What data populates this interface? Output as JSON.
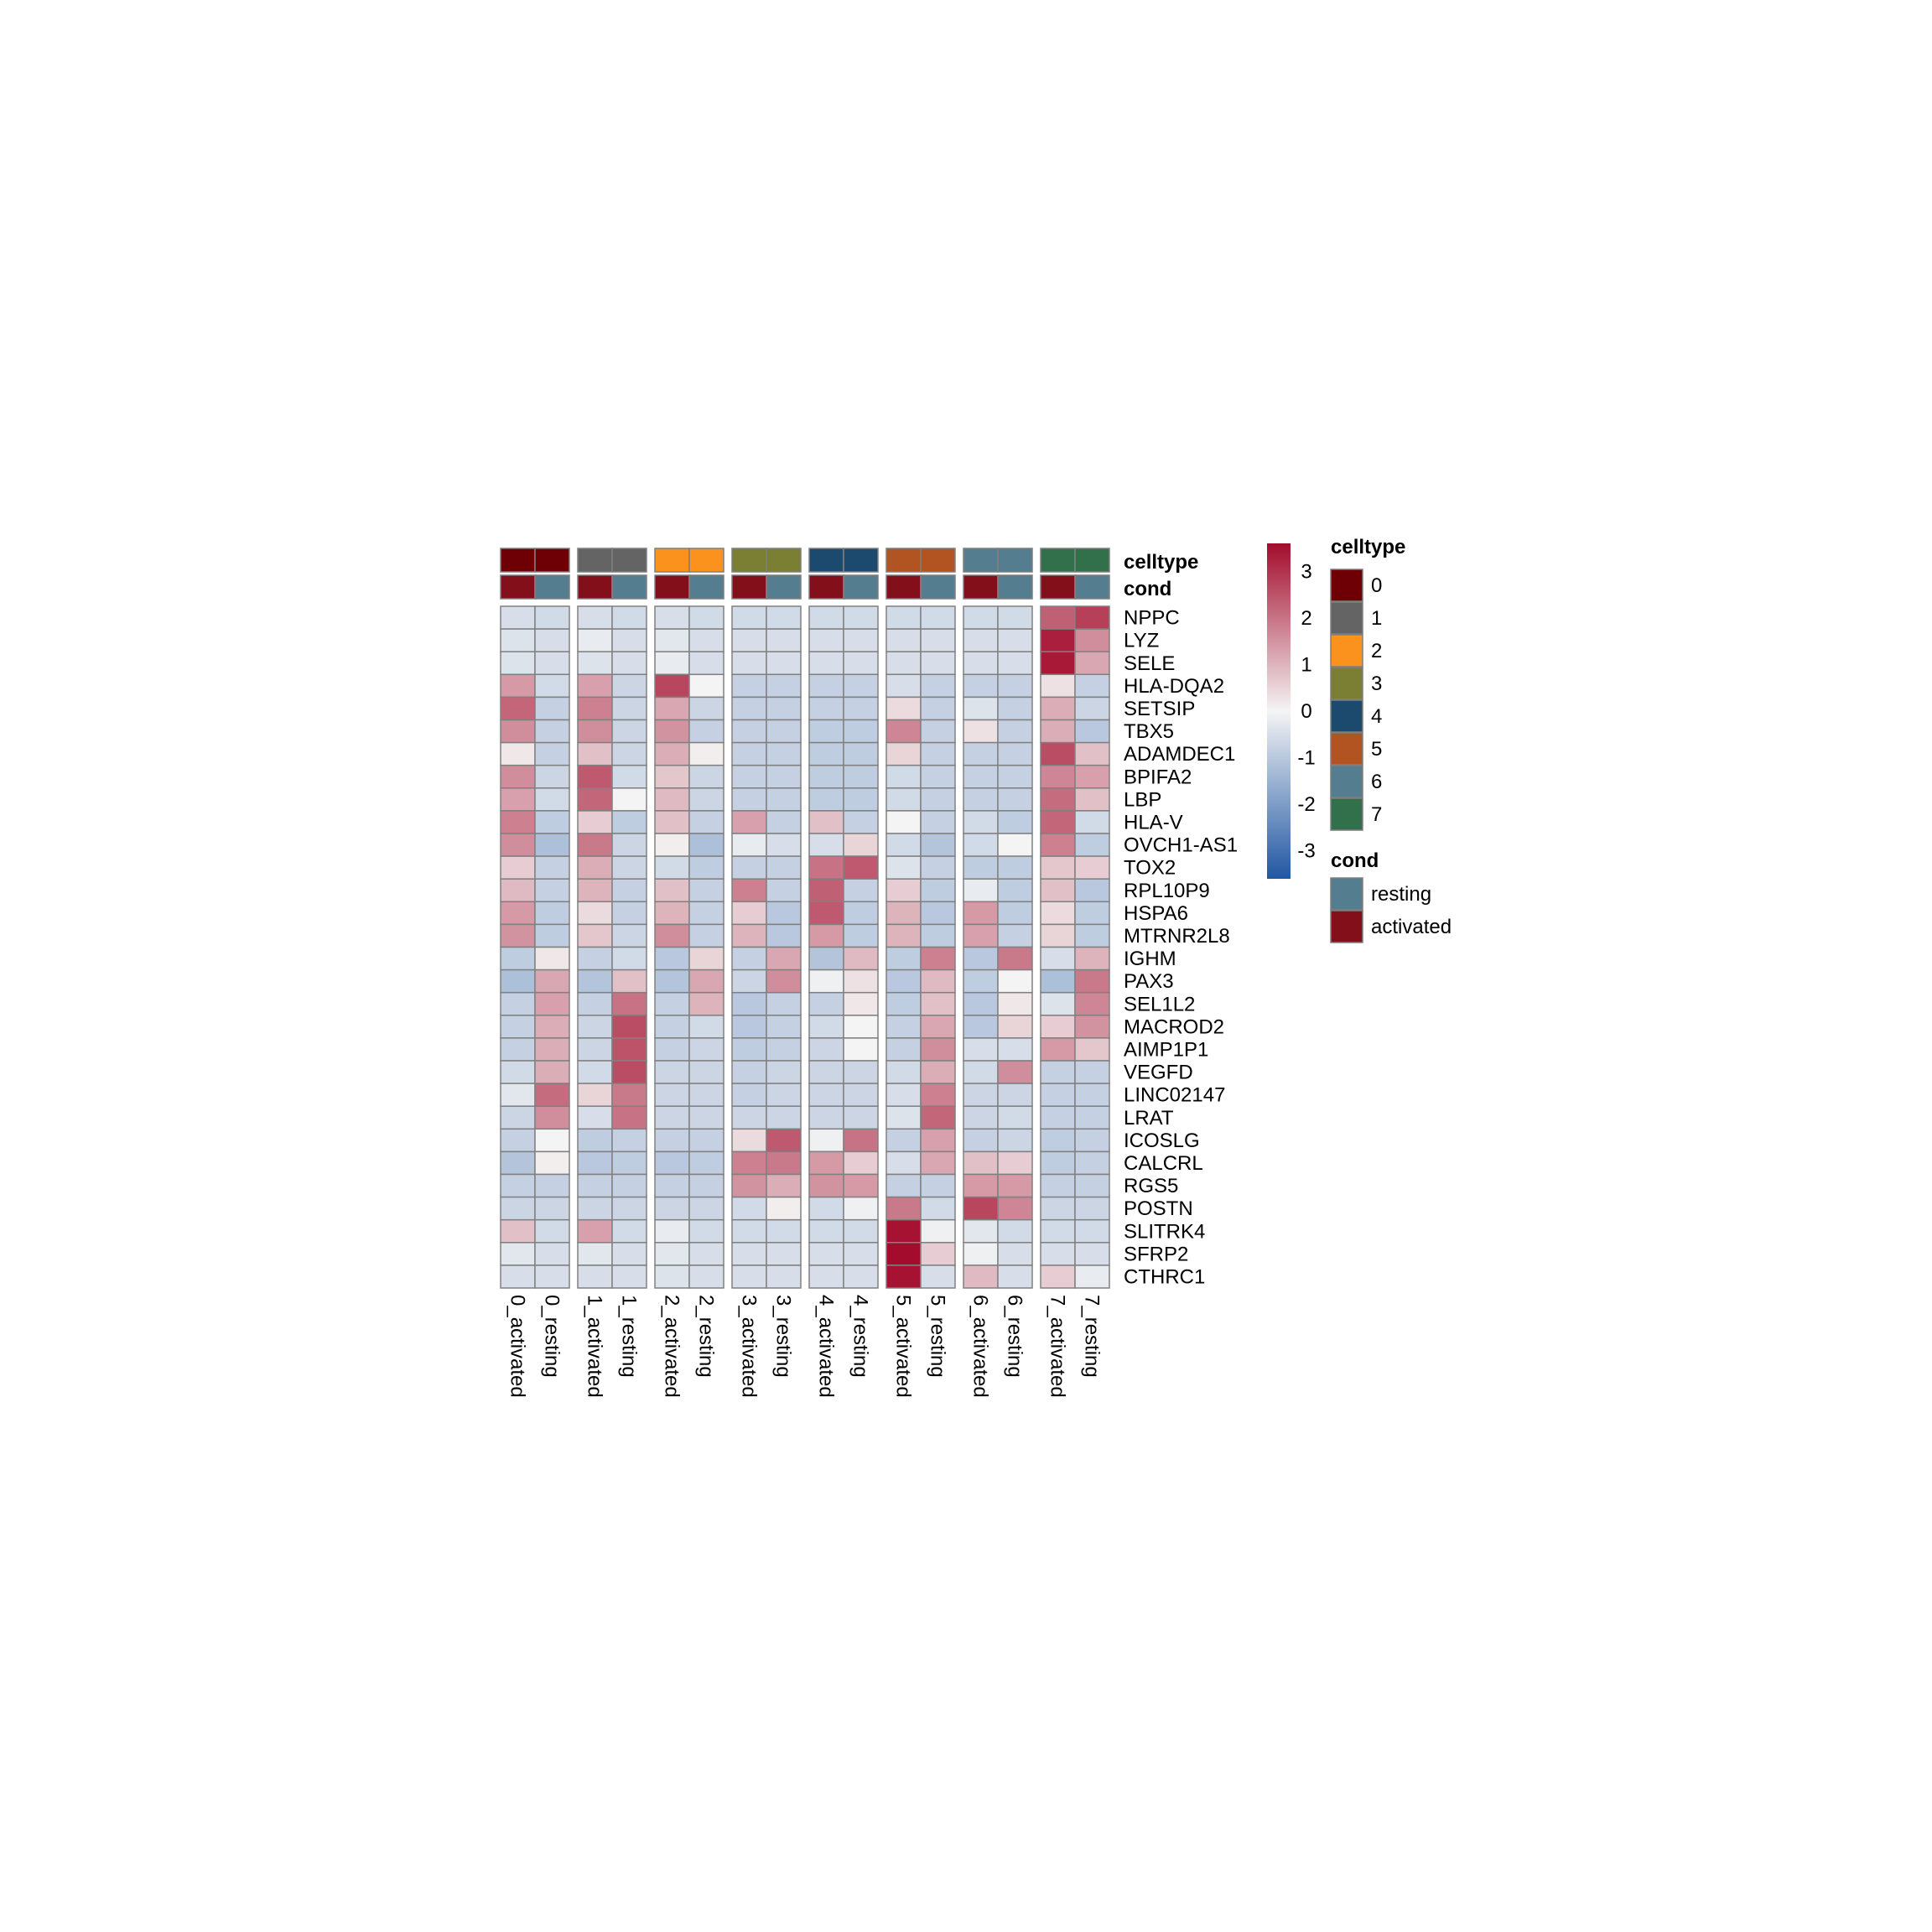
{
  "chart_data": {
    "type": "heatmap",
    "rows": [
      "NPPC",
      "LYZ",
      "SELE",
      "HLA-DQA2",
      "SETSIP",
      "TBX5",
      "ADAMDEC1",
      "BPIFA2",
      "LBP",
      "HLA-V",
      "OVCH1-AS1",
      "TOX2",
      "RPL10P9",
      "HSPA6",
      "MTRNR2L8",
      "IGHM",
      "PAX3",
      "SEL1L2",
      "MACROD2",
      "AIMP1P1",
      "VEGFD",
      "LINC02147",
      "LRAT",
      "ICOSLG",
      "CALCRL",
      "RGS5",
      "POSTN",
      "SLITRK4",
      "SFRP2",
      "CTHRC1"
    ],
    "columns": [
      "0_activated",
      "0_resting",
      "1_activated",
      "1_resting",
      "2_activated",
      "2_resting",
      "3_activated",
      "3_resting",
      "4_activated",
      "4_resting",
      "5_activated",
      "5_resting",
      "6_activated",
      "6_resting",
      "7_activated",
      "7_resting"
    ],
    "column_groups": [
      "0",
      "1",
      "2",
      "3",
      "4",
      "5",
      "6",
      "7"
    ],
    "annotations": {
      "celltype": {
        "label": "celltype",
        "values": [
          "0",
          "0",
          "1",
          "1",
          "2",
          "2",
          "3",
          "3",
          "4",
          "4",
          "5",
          "5",
          "6",
          "6",
          "7",
          "7"
        ]
      },
      "cond": {
        "label": "cond",
        "values": [
          "activated",
          "resting",
          "activated",
          "resting",
          "activated",
          "resting",
          "activated",
          "resting",
          "activated",
          "resting",
          "activated",
          "resting",
          "activated",
          "resting",
          "activated",
          "resting"
        ]
      }
    },
    "values": [
      [
        -0.5,
        -0.6,
        -0.5,
        -0.6,
        -0.5,
        -0.6,
        -0.6,
        -0.6,
        -0.6,
        -0.6,
        -0.6,
        -0.6,
        -0.6,
        -0.6,
        2.3,
        2.8
      ],
      [
        -0.4,
        -0.5,
        -0.2,
        -0.5,
        -0.3,
        -0.5,
        -0.5,
        -0.5,
        -0.5,
        -0.5,
        -0.5,
        -0.5,
        -0.5,
        -0.5,
        3.3,
        1.6
      ],
      [
        -0.4,
        -0.5,
        -0.4,
        -0.5,
        -0.2,
        -0.5,
        -0.5,
        -0.5,
        -0.5,
        -0.5,
        -0.5,
        -0.5,
        -0.5,
        -0.5,
        3.4,
        1.2
      ],
      [
        1.4,
        -0.6,
        1.3,
        -0.7,
        2.7,
        0.0,
        -0.8,
        -0.8,
        -0.8,
        -0.8,
        -0.5,
        -0.8,
        -0.8,
        -0.8,
        0.3,
        -0.8
      ],
      [
        2.2,
        -0.8,
        1.8,
        -0.7,
        1.2,
        -0.7,
        -0.8,
        -0.8,
        -0.8,
        -0.8,
        0.4,
        -0.8,
        -0.4,
        -0.8,
        1.1,
        -0.7
      ],
      [
        1.6,
        -0.8,
        1.6,
        -0.7,
        1.5,
        -0.8,
        -0.8,
        -0.8,
        -0.9,
        -0.9,
        1.7,
        -0.8,
        0.3,
        -0.8,
        1.1,
        -1.0
      ],
      [
        0.2,
        -0.8,
        0.8,
        -0.7,
        1.1,
        0.1,
        -0.8,
        -0.8,
        -0.9,
        -0.9,
        0.5,
        -0.8,
        -0.8,
        -0.8,
        2.6,
        0.8
      ],
      [
        1.6,
        -0.7,
        2.4,
        -0.6,
        0.7,
        -0.7,
        -0.8,
        -0.8,
        -0.9,
        -0.9,
        -0.6,
        -0.8,
        -0.8,
        -0.8,
        1.7,
        1.3
      ],
      [
        1.3,
        -0.6,
        2.2,
        0.0,
        0.9,
        -0.7,
        -0.8,
        -0.8,
        -0.9,
        -0.9,
        -0.6,
        -0.8,
        -0.8,
        -0.8,
        2.1,
        0.8
      ],
      [
        1.8,
        -0.9,
        0.6,
        -0.9,
        0.8,
        -0.8,
        1.3,
        -0.8,
        0.8,
        -0.8,
        0.0,
        -0.8,
        -0.6,
        -0.9,
        2.2,
        -0.6
      ],
      [
        1.6,
        -1.2,
        1.9,
        -0.7,
        0.1,
        -1.2,
        -0.2,
        -0.5,
        -0.5,
        0.5,
        -0.6,
        -1.1,
        -0.6,
        0.0,
        1.8,
        -0.9
      ],
      [
        0.6,
        -0.8,
        1.1,
        -0.7,
        -0.6,
        -0.9,
        -0.8,
        -0.8,
        2.0,
        2.4,
        -0.4,
        -0.8,
        -0.9,
        -0.9,
        0.7,
        0.6
      ],
      [
        0.9,
        -0.8,
        1.0,
        -0.8,
        0.8,
        -0.8,
        1.8,
        -0.8,
        2.3,
        -0.8,
        0.6,
        -0.9,
        -0.2,
        -0.9,
        0.8,
        -1.0
      ],
      [
        1.4,
        -0.9,
        0.4,
        -0.8,
        1.0,
        -0.8,
        0.6,
        -1.0,
        2.4,
        -0.9,
        1.0,
        -1.0,
        1.4,
        -0.9,
        0.4,
        -0.9
      ],
      [
        1.5,
        -0.9,
        0.7,
        -0.7,
        1.6,
        -0.8,
        1.0,
        -1.0,
        1.4,
        -0.9,
        1.0,
        -0.9,
        1.3,
        -0.8,
        0.5,
        -0.9
      ],
      [
        -0.9,
        0.2,
        -0.8,
        -0.6,
        -1.0,
        0.5,
        -0.8,
        1.2,
        -1.1,
        0.9,
        -0.9,
        1.8,
        -1.0,
        1.9,
        -0.5,
        1.0
      ],
      [
        -1.2,
        1.2,
        -1.1,
        0.8,
        -1.1,
        1.2,
        -0.7,
        1.6,
        -0.1,
        0.3,
        -1.0,
        0.9,
        -0.9,
        0.0,
        -1.2,
        1.9
      ],
      [
        -0.8,
        1.3,
        -0.8,
        2.0,
        -0.8,
        1.0,
        -1.0,
        -0.8,
        -0.8,
        0.2,
        -0.9,
        0.8,
        -1.0,
        0.2,
        -0.4,
        1.7
      ],
      [
        -0.8,
        1.1,
        -0.7,
        2.6,
        -0.8,
        -0.6,
        -1.0,
        -0.8,
        -0.6,
        0.0,
        -0.8,
        1.2,
        -1.0,
        0.5,
        0.6,
        1.5
      ],
      [
        -0.8,
        1.1,
        -0.7,
        2.5,
        -0.8,
        -0.7,
        -0.9,
        -0.8,
        -0.7,
        0.0,
        -0.8,
        1.6,
        -0.5,
        -0.5,
        1.4,
        0.7
      ],
      [
        -0.6,
        1.1,
        -0.6,
        2.6,
        -0.7,
        -0.7,
        -0.8,
        -0.7,
        -0.7,
        -0.7,
        -0.6,
        1.1,
        -0.6,
        1.6,
        -0.8,
        -0.8
      ],
      [
        -0.3,
        2.1,
        0.5,
        1.9,
        -0.7,
        -0.7,
        -0.8,
        -0.7,
        -0.7,
        -0.7,
        -0.5,
        1.8,
        -0.7,
        -0.7,
        -0.8,
        -0.8
      ],
      [
        -0.7,
        1.6,
        -0.5,
        2.0,
        -0.7,
        -0.7,
        -0.7,
        -0.7,
        -0.7,
        -0.7,
        -0.4,
        2.2,
        -0.7,
        -0.6,
        -0.8,
        -0.8
      ],
      [
        -0.8,
        0.0,
        -0.9,
        -0.8,
        -0.8,
        -0.8,
        0.4,
        2.4,
        -0.1,
        2.0,
        -0.8,
        1.3,
        -0.8,
        -0.7,
        -0.9,
        -0.8
      ],
      [
        -1.1,
        0.1,
        -1.0,
        -0.9,
        -1.0,
        -0.9,
        1.8,
        1.9,
        1.4,
        0.6,
        -0.5,
        1.2,
        0.8,
        0.6,
        -0.9,
        -0.8
      ],
      [
        -0.8,
        -0.8,
        -0.8,
        -0.8,
        -0.8,
        -0.8,
        1.5,
        1.1,
        1.5,
        1.4,
        -0.8,
        -0.8,
        1.4,
        1.4,
        -0.8,
        -0.8
      ],
      [
        -0.7,
        -0.7,
        -0.7,
        -0.7,
        -0.7,
        -0.7,
        -0.6,
        0.1,
        -0.6,
        -0.1,
        1.9,
        -0.6,
        2.7,
        1.7,
        -0.7,
        -0.7
      ],
      [
        0.8,
        -0.6,
        1.3,
        -0.6,
        -0.2,
        -0.6,
        -0.6,
        -0.6,
        -0.6,
        -0.6,
        3.5,
        -0.1,
        -0.3,
        -0.6,
        -0.6,
        -0.6
      ],
      [
        -0.3,
        -0.5,
        -0.3,
        -0.5,
        -0.3,
        -0.5,
        -0.5,
        -0.5,
        -0.5,
        -0.5,
        3.6,
        0.6,
        -0.1,
        -0.5,
        -0.5,
        -0.5
      ],
      [
        -0.5,
        -0.5,
        -0.5,
        -0.5,
        -0.4,
        -0.5,
        -0.5,
        -0.5,
        -0.5,
        -0.5,
        3.5,
        -0.5,
        0.9,
        -0.5,
        0.6,
        -0.2
      ]
    ],
    "color_scale": {
      "min": -3.6,
      "max": 3.6,
      "ticks": [
        3,
        2,
        1,
        0,
        -1,
        -2,
        -3
      ],
      "low_color": "#2057a3",
      "mid_color": "#f4f4f4",
      "high_color": "#a30c2c"
    },
    "celltype_colors": {
      "0": "#6e0005",
      "1": "#646464",
      "2": "#fb921d",
      "3": "#7a7f34",
      "4": "#1b4a6e",
      "5": "#b15422",
      "6": "#557d90",
      "7": "#326f4b"
    },
    "cond_colors": {
      "resting": "#557d90",
      "activated": "#830f1b"
    },
    "legend": {
      "celltype": {
        "title": "celltype",
        "items": [
          "0",
          "1",
          "2",
          "3",
          "4",
          "5",
          "6",
          "7"
        ]
      },
      "cond": {
        "title": "cond",
        "items": [
          "resting",
          "activated"
        ]
      }
    },
    "grid": true,
    "legend_position": "right"
  }
}
